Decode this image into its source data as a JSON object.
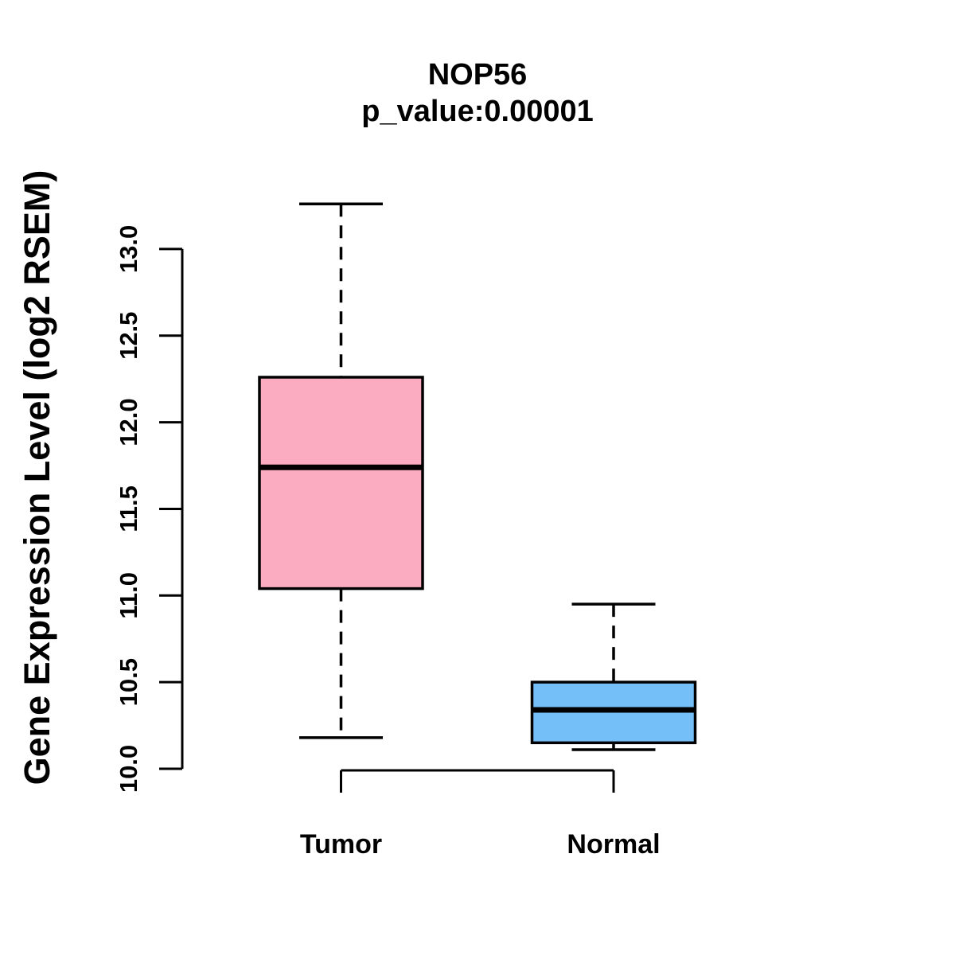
{
  "title": "NOP56",
  "subtitle": "p_value:0.00001",
  "chart_data": {
    "type": "boxplot",
    "title": "NOP56",
    "subtitle": "p_value:0.00001",
    "ylabel": "Gene Expression Level (log2 RSEM)",
    "categories": [
      "Tumor",
      "Normal"
    ],
    "series": [
      {
        "name": "Tumor",
        "min": 10.18,
        "q1": 11.04,
        "median": 11.74,
        "q3": 12.26,
        "max": 13.26,
        "color": "#FCACC0"
      },
      {
        "name": "Normal",
        "min": 10.11,
        "q1": 10.15,
        "median": 10.34,
        "q3": 10.5,
        "max": 10.95,
        "color": "#74BFF8"
      }
    ],
    "yticks": [
      10.0,
      10.5,
      11.0,
      11.5,
      12.0,
      12.5,
      13.0
    ],
    "ytick_labels": [
      "10.0",
      "10.5",
      "11.0",
      "11.5",
      "12.0",
      "12.5",
      "13.0"
    ],
    "ylim": [
      10.0,
      13.0
    ],
    "grid": false,
    "legend": "none",
    "axis_color": "#000000",
    "median_color": "#000000",
    "whisker_style": "dashed"
  }
}
